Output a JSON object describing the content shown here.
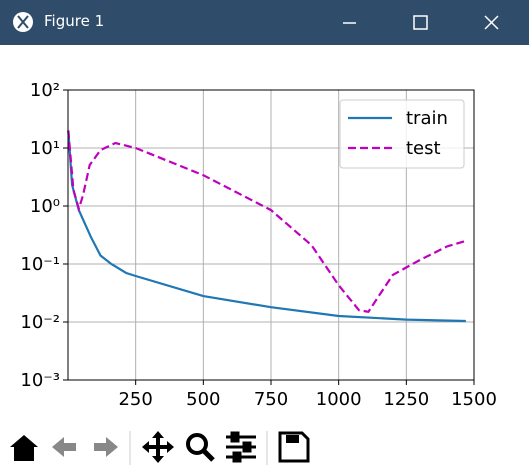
{
  "window": {
    "title": "Figure 1"
  },
  "chart_data": {
    "type": "line",
    "yscale": "log",
    "grid": true,
    "legend": "upper right",
    "xlim": [
      0,
      1500
    ],
    "xticks": [
      250,
      500,
      750,
      1000,
      1250,
      1500
    ],
    "ylim": [
      0.001,
      100
    ],
    "yticks": [
      {
        "value": 0.001,
        "label": "10⁻³"
      },
      {
        "value": 0.01,
        "label": "10⁻²"
      },
      {
        "value": 0.1,
        "label": "10⁻¹"
      },
      {
        "value": 1,
        "label": "10⁰"
      },
      {
        "value": 10,
        "label": "10¹"
      },
      {
        "value": 100,
        "label": "10²"
      }
    ],
    "series": [
      {
        "name": "train",
        "color": "#1f77b4",
        "style": "solid",
        "x": [
          1,
          15,
          40,
          85,
          120,
          160,
          215,
          250,
          500,
          750,
          1000,
          1250,
          1470
        ],
        "values": [
          20,
          2.3,
          0.85,
          0.29,
          0.14,
          0.1,
          0.07,
          0.062,
          0.028,
          0.018,
          0.0127,
          0.011,
          0.0104
        ]
      },
      {
        "name": "test",
        "color": "#bf00bf",
        "style": "dashed",
        "x": [
          1,
          20,
          40,
          55,
          80,
          120,
          175,
          250,
          500,
          750,
          900,
          1000,
          1075,
          1110,
          1150,
          1200,
          1300,
          1400,
          1470
        ],
        "values": [
          20,
          1.9,
          0.9,
          1.5,
          5.1,
          9.2,
          12.2,
          10,
          3.4,
          0.85,
          0.21,
          0.043,
          0.016,
          0.015,
          0.029,
          0.065,
          0.117,
          0.2,
          0.25
        ]
      }
    ]
  }
}
